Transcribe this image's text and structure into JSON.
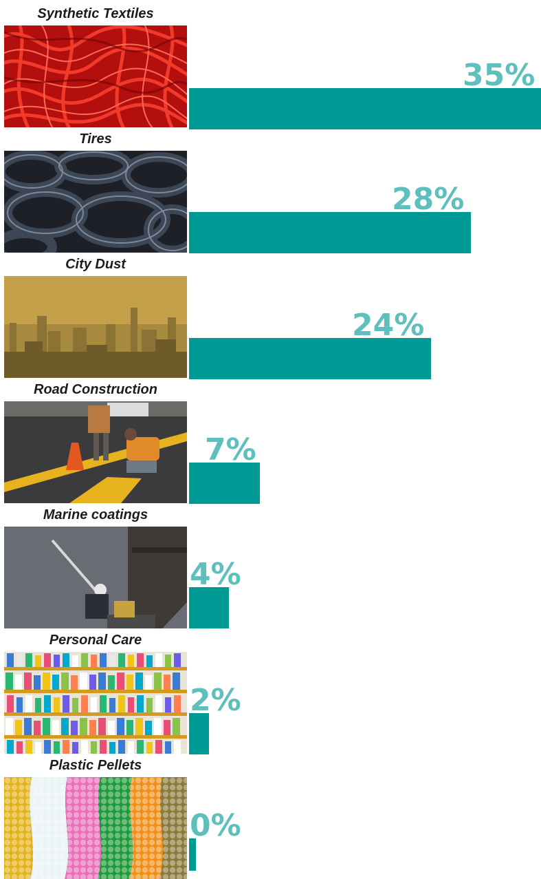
{
  "chart_data": {
    "type": "bar",
    "orientation": "horizontal",
    "categories": [
      "Synthetic Textiles",
      "Tires",
      "City Dust",
      "Road Construction",
      "Marine coatings",
      "Personal Care",
      "Plastic Pellets"
    ],
    "values": [
      35,
      28,
      24,
      7,
      4,
      2,
      0.3
    ],
    "value_labels": [
      "35%",
      "28%",
      "24%",
      "7%",
      "4%",
      "2%",
      "0%"
    ],
    "images": [
      "red-fibers-photo",
      "tires-photo",
      "city-smog-photo",
      "road-workers-photo",
      "ship-painting-photo",
      "store-shelves-photo",
      "plastic-pellets-photo"
    ],
    "xlim": [
      0,
      35
    ],
    "grid": false,
    "legend": "none",
    "colors": {
      "bar": "#009a94",
      "value_label": "#5ebfbc",
      "category_label": "#1c1c1c"
    }
  }
}
